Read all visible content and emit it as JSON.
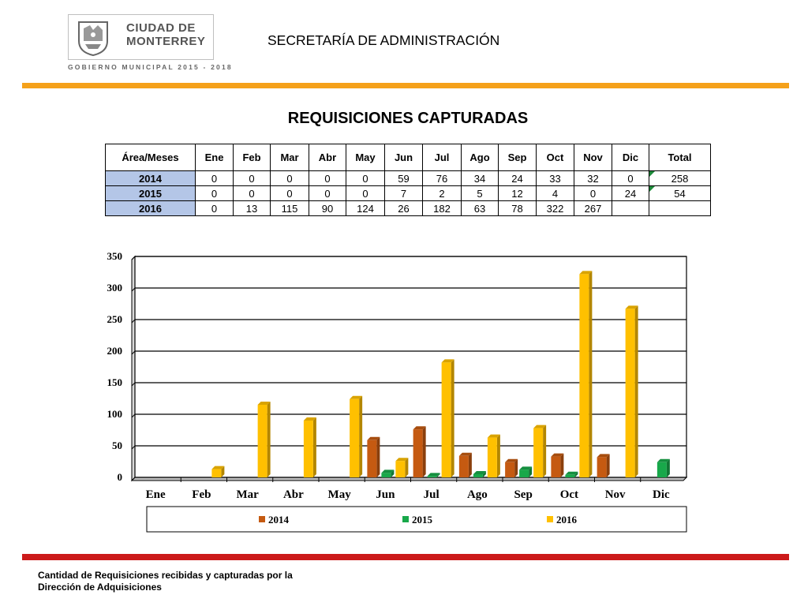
{
  "header": {
    "logo_line1": "CIUDAD DE",
    "logo_line2": "MONTERREY",
    "logo_sub": "GOBIERNO MUNICIPAL 2015 - 2018",
    "department": "SECRETARÍA DE ADMINISTRACIÓN"
  },
  "title": "REQUISICIONES CAPTURADAS",
  "table": {
    "headers": [
      "Área/Meses",
      "Ene",
      "Feb",
      "Mar",
      "Abr",
      "May",
      "Jun",
      "Jul",
      "Ago",
      "Sep",
      "Oct",
      "Nov",
      "Dic",
      "Total"
    ],
    "rows": [
      [
        "2014",
        "0",
        "0",
        "0",
        "0",
        "0",
        "59",
        "76",
        "34",
        "24",
        "33",
        "32",
        "0",
        "258"
      ],
      [
        "2015",
        "0",
        "0",
        "0",
        "0",
        "0",
        "7",
        "2",
        "5",
        "12",
        "4",
        "0",
        "24",
        "54"
      ],
      [
        "2016",
        "0",
        "13",
        "115",
        "90",
        "124",
        "26",
        "182",
        "63",
        "78",
        "322",
        "267",
        "",
        ""
      ]
    ]
  },
  "chart_data": {
    "type": "bar",
    "categories": [
      "Ene",
      "Feb",
      "Mar",
      "Abr",
      "May",
      "Jun",
      "Jul",
      "Ago",
      "Sep",
      "Oct",
      "Nov",
      "Dic"
    ],
    "series": [
      {
        "name": "2014",
        "values": [
          0,
          0,
          0,
          0,
          0,
          59,
          76,
          34,
          24,
          33,
          32,
          0
        ],
        "color": "#c55a11"
      },
      {
        "name": "2015",
        "values": [
          0,
          0,
          0,
          0,
          0,
          7,
          2,
          5,
          12,
          4,
          0,
          24
        ],
        "color": "#18a84a"
      },
      {
        "name": "2016",
        "values": [
          0,
          13,
          115,
          90,
          124,
          26,
          182,
          63,
          78,
          322,
          267,
          0
        ],
        "color": "#ffc000"
      }
    ],
    "ylim": [
      0,
      350
    ],
    "yticks": [
      0,
      50,
      100,
      150,
      200,
      250,
      300,
      350
    ],
    "grid": true,
    "legend": "bottom"
  },
  "footnote": "Cantidad de Requisiciones recibidas y capturadas por la\nDirección de Adquisiciones"
}
